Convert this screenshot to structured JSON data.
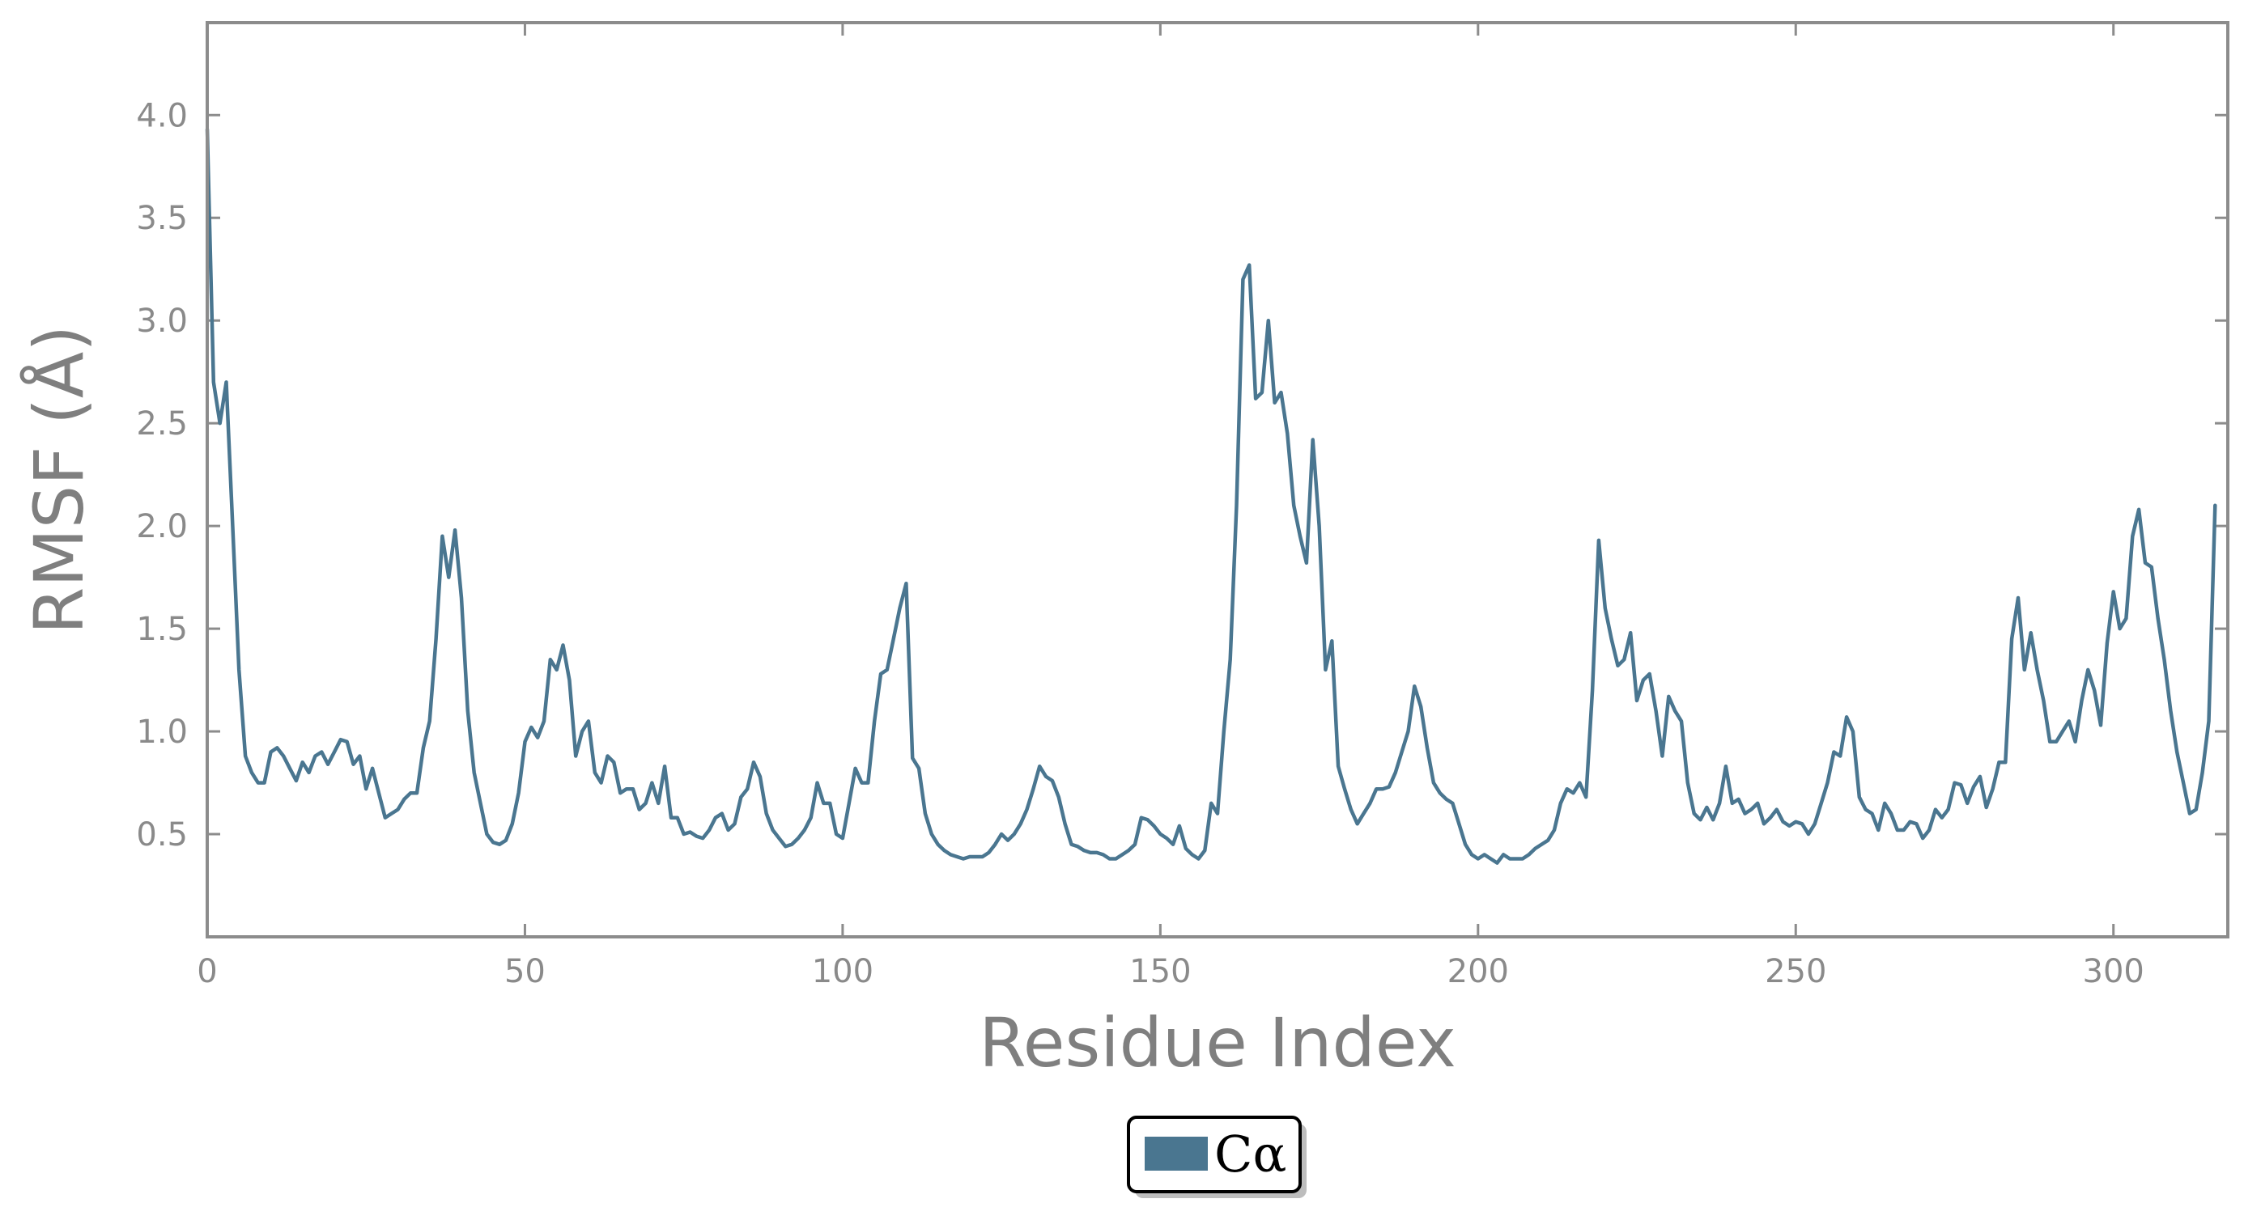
{
  "chart_data": {
    "type": "line",
    "xlabel": "Residue Index",
    "ylabel": "RMSF (Å)",
    "xlim": [
      0,
      318
    ],
    "ylim": [
      0.0,
      4.45
    ],
    "x_ticks": [
      0,
      50,
      100,
      150,
      200,
      250,
      300
    ],
    "y_ticks": [
      0.5,
      1.0,
      1.5,
      2.0,
      2.5,
      3.0,
      3.5,
      4.0
    ],
    "x_tick_labels": [
      "0",
      "50",
      "100",
      "150",
      "200",
      "250",
      "300"
    ],
    "y_tick_labels": [
      "0.5",
      "1.0",
      "1.5",
      "2.0",
      "2.5",
      "3.0",
      "3.5",
      "4.0"
    ],
    "grid": false,
    "legend_position": "bottom-center",
    "series": [
      {
        "name": "Cα",
        "color": "#4a7690",
        "points": [
          [
            0,
            3.93
          ],
          [
            1,
            2.7
          ],
          [
            2,
            2.5
          ],
          [
            3,
            2.7
          ],
          [
            4,
            2.0
          ],
          [
            5,
            1.3
          ],
          [
            6,
            0.88
          ],
          [
            7,
            0.8
          ],
          [
            8,
            0.75
          ],
          [
            9,
            0.75
          ],
          [
            10,
            0.9
          ],
          [
            11,
            0.92
          ],
          [
            12,
            0.88
          ],
          [
            13,
            0.82
          ],
          [
            14,
            0.76
          ],
          [
            15,
            0.85
          ],
          [
            16,
            0.8
          ],
          [
            17,
            0.88
          ],
          [
            18,
            0.9
          ],
          [
            19,
            0.84
          ],
          [
            20,
            0.9
          ],
          [
            21,
            0.96
          ],
          [
            22,
            0.95
          ],
          [
            23,
            0.84
          ],
          [
            24,
            0.88
          ],
          [
            25,
            0.72
          ],
          [
            26,
            0.82
          ],
          [
            27,
            0.7
          ],
          [
            28,
            0.58
          ],
          [
            29,
            0.6
          ],
          [
            30,
            0.62
          ],
          [
            31,
            0.67
          ],
          [
            32,
            0.7
          ],
          [
            33,
            0.7
          ],
          [
            34,
            0.92
          ],
          [
            35,
            1.05
          ],
          [
            36,
            1.45
          ],
          [
            37,
            1.95
          ],
          [
            38,
            1.75
          ],
          [
            39,
            1.98
          ],
          [
            40,
            1.65
          ],
          [
            41,
            1.1
          ],
          [
            42,
            0.8
          ],
          [
            43,
            0.65
          ],
          [
            44,
            0.5
          ],
          [
            45,
            0.46
          ],
          [
            46,
            0.45
          ],
          [
            47,
            0.47
          ],
          [
            48,
            0.55
          ],
          [
            49,
            0.7
          ],
          [
            50,
            0.95
          ],
          [
            51,
            1.02
          ],
          [
            52,
            0.97
          ],
          [
            53,
            1.05
          ],
          [
            54,
            1.35
          ],
          [
            55,
            1.3
          ],
          [
            56,
            1.42
          ],
          [
            57,
            1.25
          ],
          [
            58,
            0.88
          ],
          [
            59,
            1.0
          ],
          [
            60,
            1.05
          ],
          [
            61,
            0.8
          ],
          [
            62,
            0.75
          ],
          [
            63,
            0.88
          ],
          [
            64,
            0.85
          ],
          [
            65,
            0.7
          ],
          [
            66,
            0.72
          ],
          [
            67,
            0.72
          ],
          [
            68,
            0.62
          ],
          [
            69,
            0.65
          ],
          [
            70,
            0.75
          ],
          [
            71,
            0.65
          ],
          [
            72,
            0.83
          ],
          [
            73,
            0.58
          ],
          [
            74,
            0.58
          ],
          [
            75,
            0.5
          ],
          [
            76,
            0.51
          ],
          [
            77,
            0.49
          ],
          [
            78,
            0.48
          ],
          [
            79,
            0.52
          ],
          [
            80,
            0.58
          ],
          [
            81,
            0.6
          ],
          [
            82,
            0.52
          ],
          [
            83,
            0.55
          ],
          [
            84,
            0.68
          ],
          [
            85,
            0.72
          ],
          [
            86,
            0.85
          ],
          [
            87,
            0.78
          ],
          [
            88,
            0.6
          ],
          [
            89,
            0.52
          ],
          [
            90,
            0.48
          ],
          [
            91,
            0.44
          ],
          [
            92,
            0.45
          ],
          [
            93,
            0.48
          ],
          [
            94,
            0.52
          ],
          [
            95,
            0.58
          ],
          [
            96,
            0.75
          ],
          [
            97,
            0.65
          ],
          [
            98,
            0.65
          ],
          [
            99,
            0.5
          ],
          [
            100,
            0.48
          ],
          [
            101,
            0.65
          ],
          [
            102,
            0.82
          ],
          [
            103,
            0.75
          ],
          [
            104,
            0.75
          ],
          [
            105,
            1.05
          ],
          [
            106,
            1.28
          ],
          [
            107,
            1.3
          ],
          [
            108,
            1.45
          ],
          [
            109,
            1.6
          ],
          [
            110,
            1.72
          ],
          [
            111,
            0.87
          ],
          [
            112,
            0.82
          ],
          [
            113,
            0.6
          ],
          [
            114,
            0.5
          ],
          [
            115,
            0.45
          ],
          [
            116,
            0.42
          ],
          [
            117,
            0.4
          ],
          [
            118,
            0.39
          ],
          [
            119,
            0.38
          ],
          [
            120,
            0.39
          ],
          [
            121,
            0.39
          ],
          [
            122,
            0.39
          ],
          [
            123,
            0.41
          ],
          [
            124,
            0.45
          ],
          [
            125,
            0.5
          ],
          [
            126,
            0.47
          ],
          [
            127,
            0.5
          ],
          [
            128,
            0.55
          ],
          [
            129,
            0.62
          ],
          [
            130,
            0.72
          ],
          [
            131,
            0.83
          ],
          [
            132,
            0.78
          ],
          [
            133,
            0.76
          ],
          [
            134,
            0.68
          ],
          [
            135,
            0.55
          ],
          [
            136,
            0.45
          ],
          [
            137,
            0.44
          ],
          [
            138,
            0.42
          ],
          [
            139,
            0.41
          ],
          [
            140,
            0.41
          ],
          [
            141,
            0.4
          ],
          [
            142,
            0.38
          ],
          [
            143,
            0.38
          ],
          [
            144,
            0.4
          ],
          [
            145,
            0.42
          ],
          [
            146,
            0.45
          ],
          [
            147,
            0.58
          ],
          [
            148,
            0.57
          ],
          [
            149,
            0.54
          ],
          [
            150,
            0.5
          ],
          [
            151,
            0.48
          ],
          [
            152,
            0.45
          ],
          [
            153,
            0.54
          ],
          [
            154,
            0.43
          ],
          [
            155,
            0.4
          ],
          [
            156,
            0.38
          ],
          [
            157,
            0.42
          ],
          [
            158,
            0.65
          ],
          [
            159,
            0.6
          ],
          [
            160,
            1.0
          ],
          [
            161,
            1.35
          ],
          [
            162,
            2.1
          ],
          [
            163,
            3.2
          ],
          [
            164,
            3.27
          ],
          [
            165,
            2.62
          ],
          [
            166,
            2.65
          ],
          [
            167,
            3.0
          ],
          [
            168,
            2.6
          ],
          [
            169,
            2.65
          ],
          [
            170,
            2.45
          ],
          [
            171,
            2.1
          ],
          [
            172,
            1.95
          ],
          [
            173,
            1.82
          ],
          [
            174,
            2.42
          ],
          [
            175,
            2.0
          ],
          [
            176,
            1.3
          ],
          [
            177,
            1.44
          ],
          [
            178,
            0.83
          ],
          [
            179,
            0.72
          ],
          [
            180,
            0.62
          ],
          [
            181,
            0.55
          ],
          [
            182,
            0.6
          ],
          [
            183,
            0.65
          ],
          [
            184,
            0.72
          ],
          [
            185,
            0.72
          ],
          [
            186,
            0.73
          ],
          [
            187,
            0.8
          ],
          [
            188,
            0.9
          ],
          [
            189,
            1.0
          ],
          [
            190,
            1.22
          ],
          [
            191,
            1.12
          ],
          [
            192,
            0.92
          ],
          [
            193,
            0.75
          ],
          [
            194,
            0.7
          ],
          [
            195,
            0.67
          ],
          [
            196,
            0.65
          ],
          [
            197,
            0.55
          ],
          [
            198,
            0.45
          ],
          [
            199,
            0.4
          ],
          [
            200,
            0.38
          ],
          [
            201,
            0.4
          ],
          [
            202,
            0.38
          ],
          [
            203,
            0.36
          ],
          [
            204,
            0.4
          ],
          [
            205,
            0.38
          ],
          [
            206,
            0.38
          ],
          [
            207,
            0.38
          ],
          [
            208,
            0.4
          ],
          [
            209,
            0.43
          ],
          [
            210,
            0.45
          ],
          [
            211,
            0.47
          ],
          [
            212,
            0.52
          ],
          [
            213,
            0.65
          ],
          [
            214,
            0.72
          ],
          [
            215,
            0.7
          ],
          [
            216,
            0.75
          ],
          [
            217,
            0.68
          ],
          [
            218,
            1.2
          ],
          [
            219,
            1.93
          ],
          [
            220,
            1.6
          ],
          [
            221,
            1.45
          ],
          [
            222,
            1.32
          ],
          [
            223,
            1.35
          ],
          [
            224,
            1.48
          ],
          [
            225,
            1.15
          ],
          [
            226,
            1.25
          ],
          [
            227,
            1.28
          ],
          [
            228,
            1.1
          ],
          [
            229,
            0.88
          ],
          [
            230,
            1.17
          ],
          [
            231,
            1.1
          ],
          [
            232,
            1.05
          ],
          [
            233,
            0.75
          ],
          [
            234,
            0.6
          ],
          [
            235,
            0.57
          ],
          [
            236,
            0.63
          ],
          [
            237,
            0.57
          ],
          [
            238,
            0.65
          ],
          [
            239,
            0.83
          ],
          [
            240,
            0.65
          ],
          [
            241,
            0.67
          ],
          [
            242,
            0.6
          ],
          [
            243,
            0.62
          ],
          [
            244,
            0.65
          ],
          [
            245,
            0.55
          ],
          [
            246,
            0.58
          ],
          [
            247,
            0.62
          ],
          [
            248,
            0.56
          ],
          [
            249,
            0.54
          ],
          [
            250,
            0.56
          ],
          [
            251,
            0.55
          ],
          [
            252,
            0.5
          ],
          [
            253,
            0.55
          ],
          [
            254,
            0.65
          ],
          [
            255,
            0.75
          ],
          [
            256,
            0.9
          ],
          [
            257,
            0.88
          ],
          [
            258,
            1.07
          ],
          [
            259,
            1.0
          ],
          [
            260,
            0.68
          ],
          [
            261,
            0.62
          ],
          [
            262,
            0.6
          ],
          [
            263,
            0.52
          ],
          [
            264,
            0.65
          ],
          [
            265,
            0.6
          ],
          [
            266,
            0.52
          ],
          [
            267,
            0.52
          ],
          [
            268,
            0.56
          ],
          [
            269,
            0.55
          ],
          [
            270,
            0.48
          ],
          [
            271,
            0.52
          ],
          [
            272,
            0.62
          ],
          [
            273,
            0.58
          ],
          [
            274,
            0.62
          ],
          [
            275,
            0.75
          ],
          [
            276,
            0.74
          ],
          [
            277,
            0.65
          ],
          [
            278,
            0.73
          ],
          [
            279,
            0.78
          ],
          [
            280,
            0.63
          ],
          [
            281,
            0.72
          ],
          [
            282,
            0.85
          ],
          [
            283,
            0.85
          ],
          [
            284,
            1.45
          ],
          [
            285,
            1.65
          ],
          [
            286,
            1.3
          ],
          [
            287,
            1.48
          ],
          [
            288,
            1.3
          ],
          [
            289,
            1.15
          ],
          [
            290,
            0.95
          ],
          [
            291,
            0.95
          ],
          [
            292,
            1.0
          ],
          [
            293,
            1.05
          ],
          [
            294,
            0.95
          ],
          [
            295,
            1.15
          ],
          [
            296,
            1.3
          ],
          [
            297,
            1.2
          ],
          [
            298,
            1.03
          ],
          [
            299,
            1.43
          ],
          [
            300,
            1.68
          ],
          [
            301,
            1.5
          ],
          [
            302,
            1.55
          ],
          [
            303,
            1.95
          ],
          [
            304,
            2.08
          ],
          [
            305,
            1.82
          ],
          [
            306,
            1.8
          ],
          [
            307,
            1.55
          ],
          [
            308,
            1.35
          ],
          [
            309,
            1.1
          ],
          [
            310,
            0.9
          ],
          [
            311,
            0.75
          ],
          [
            312,
            0.6
          ],
          [
            313,
            0.62
          ],
          [
            314,
            0.8
          ],
          [
            315,
            1.05
          ],
          [
            316,
            2.1
          ]
        ]
      }
    ]
  }
}
